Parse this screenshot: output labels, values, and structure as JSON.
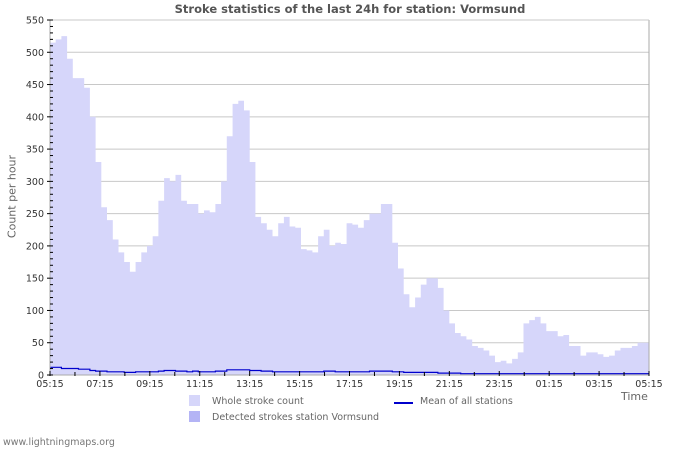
{
  "title": "Stroke statistics of the last 24h for station: Vormsund",
  "footer": "www.lightningmaps.org",
  "legend": {
    "whole": "Whole stroke count",
    "detected": "Detected strokes station Vormsund",
    "mean": "Mean of all stations"
  },
  "colors": {
    "whole_fill": "#d6d6fa",
    "detected_fill": "#b4b4f5",
    "mean_line": "#0000cc",
    "grid": "#c8c8c8",
    "axis": "#aaaaaa"
  },
  "chart_data": {
    "type": "area",
    "title": "Stroke statistics of the last 24h for station: Vormsund",
    "xlabel": "Time",
    "ylabel": "Count per hour",
    "ylim": [
      0,
      550
    ],
    "yticks": [
      0,
      50,
      100,
      150,
      200,
      250,
      300,
      350,
      400,
      450,
      500,
      550
    ],
    "xticks": [
      "05:15",
      "07:15",
      "09:15",
      "11:15",
      "13:15",
      "15:15",
      "17:15",
      "19:15",
      "21:15",
      "23:15",
      "01:15",
      "03:15",
      "05:15"
    ],
    "grid": true,
    "legend_position": "bottom",
    "interval_minutes": 15,
    "series": [
      {
        "name": "Whole stroke count",
        "kind": "area",
        "values": [
          515,
          520,
          525,
          490,
          460,
          460,
          445,
          400,
          330,
          260,
          240,
          210,
          190,
          175,
          160,
          175,
          190,
          200,
          215,
          270,
          305,
          300,
          310,
          270,
          265,
          265,
          250,
          255,
          252,
          265,
          300,
          370,
          420,
          425,
          410,
          330,
          245,
          235,
          225,
          215,
          235,
          245,
          230,
          228,
          195,
          193,
          190,
          215,
          225,
          200,
          205,
          203,
          235,
          233,
          228,
          240,
          250,
          250,
          265,
          265,
          205,
          165,
          125,
          105,
          120,
          140,
          150,
          150,
          135,
          100,
          80,
          65,
          60,
          55,
          45,
          42,
          38,
          30,
          20,
          22,
          18,
          25,
          35,
          80,
          85,
          90,
          80,
          68,
          68,
          60,
          62,
          45,
          45,
          30,
          35,
          35,
          32,
          28,
          30,
          38,
          42,
          42,
          45,
          50,
          50
        ]
      },
      {
        "name": "Detected strokes station Vormsund",
        "kind": "area",
        "values": []
      },
      {
        "name": "Mean of all stations",
        "kind": "line",
        "values": [
          12,
          12,
          10,
          10,
          10,
          9,
          9,
          7,
          6,
          6,
          5,
          5,
          5,
          4,
          4,
          5,
          5,
          5,
          5,
          6,
          7,
          7,
          6,
          6,
          5,
          6,
          5,
          5,
          5,
          6,
          6,
          8,
          8,
          8,
          8,
          7,
          7,
          6,
          6,
          5,
          5,
          5,
          5,
          5,
          5,
          5,
          5,
          5,
          6,
          6,
          5,
          5,
          5,
          5,
          5,
          5,
          6,
          6,
          6,
          6,
          5,
          5,
          4,
          4,
          4,
          4,
          4,
          4,
          3,
          3,
          3,
          3,
          2,
          2,
          2,
          2,
          2,
          2,
          2,
          2,
          2,
          2,
          2,
          2,
          2,
          2,
          2,
          2,
          2,
          2,
          2,
          2,
          2,
          2,
          2,
          2,
          2,
          2,
          2,
          2,
          2,
          2,
          2,
          2,
          2
        ]
      }
    ]
  }
}
